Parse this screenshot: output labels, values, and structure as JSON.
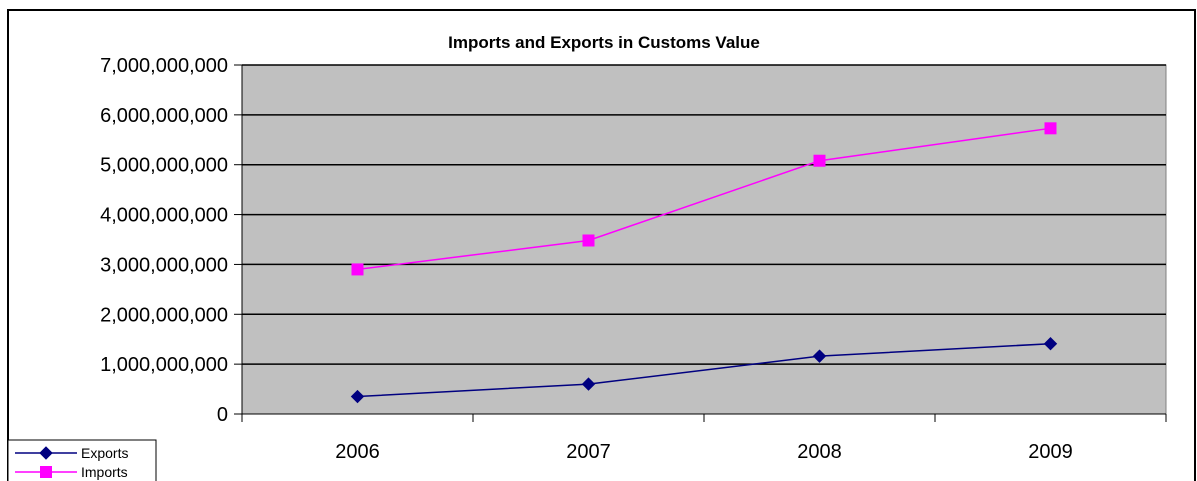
{
  "chart_data": {
    "type": "line",
    "title": "Imports and Exports in Customs Value",
    "xlabel": "",
    "ylabel": "",
    "categories": [
      "2006",
      "2007",
      "2008",
      "2009"
    ],
    "ylim": [
      0,
      7000000000
    ],
    "ytick_values": [
      0,
      1000000000,
      2000000000,
      3000000000,
      4000000000,
      5000000000,
      6000000000,
      7000000000
    ],
    "ytick_labels": [
      "0",
      "1,000,000,000",
      "2,000,000,000",
      "3,000,000,000",
      "4,000,000,000",
      "5,000,000,000",
      "6,000,000,000",
      "7,000,000,000"
    ],
    "grid": true,
    "plot_background": "#c0c0c0",
    "legend_position": "bottom-left",
    "series": [
      {
        "name": "Exports",
        "values": [
          350000000,
          600000000,
          1160000000,
          1410000000
        ],
        "color": "#000080",
        "marker": "diamond"
      },
      {
        "name": "Imports",
        "values": [
          2900000000,
          3480000000,
          5080000000,
          5730000000
        ],
        "color": "#ff00ff",
        "marker": "square"
      }
    ]
  }
}
